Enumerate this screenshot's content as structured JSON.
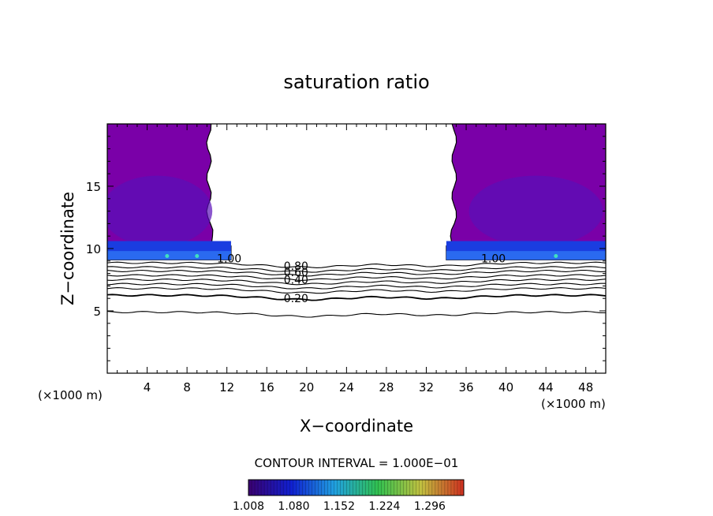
{
  "chart_data": {
    "type": "heatmap",
    "title": "saturation ratio",
    "xlabel": "X−coordinate",
    "ylabel": "Z−coordinate",
    "x_unit_left": "(×1000 m)",
    "x_unit_right": "(×1000 m)",
    "xlim": [
      0,
      50
    ],
    "ylim": [
      0,
      20
    ],
    "x_ticks": [
      4,
      8,
      12,
      16,
      20,
      24,
      28,
      32,
      36,
      40,
      44,
      48
    ],
    "y_ticks": [
      5,
      10,
      15
    ],
    "contour_interval_text": "CONTOUR INTERVAL = 1.000E−01",
    "colorbar": {
      "range": [
        1.008,
        1.35
      ],
      "tick_labels": [
        "1.008",
        "1.080",
        "1.152",
        "1.224",
        "1.296"
      ],
      "colors": [
        "#3a0070",
        "#1020d0",
        "#20a0e0",
        "#30c050",
        "#c0c040",
        "#d03020"
      ]
    },
    "contour_labels": [
      {
        "text": "1.00",
        "x": 11,
        "y": 9.2
      },
      {
        "text": "1.00",
        "x": 37.5,
        "y": 9.2
      },
      {
        "text": "0.80",
        "x": 17.7,
        "y": 8.6
      },
      {
        "text": "0.60",
        "x": 17.7,
        "y": 8.1
      },
      {
        "text": "0.40",
        "x": 17.7,
        "y": 7.5
      },
      {
        "text": "0.20",
        "x": 17.7,
        "y": 6.0
      }
    ],
    "contours": [
      {
        "level": 0.9,
        "z": 8.85
      },
      {
        "level": 0.8,
        "z": 8.5
      },
      {
        "level": 0.7,
        "z": 8.2
      },
      {
        "level": 0.6,
        "z": 7.85
      },
      {
        "level": 0.5,
        "z": 7.5
      },
      {
        "level": 0.4,
        "z": 7.15
      },
      {
        "level": 0.3,
        "z": 6.8
      },
      {
        "level": 0.2,
        "z": 6.25
      },
      {
        "level": 0.1,
        "z": 4.9
      }
    ],
    "supersaturated_regions": [
      {
        "x": [
          0,
          10.2
        ],
        "top": 20,
        "bottom": 9.1
      },
      {
        "x": [
          34.8,
          50
        ],
        "top": 20,
        "bottom": 9.1
      }
    ]
  }
}
